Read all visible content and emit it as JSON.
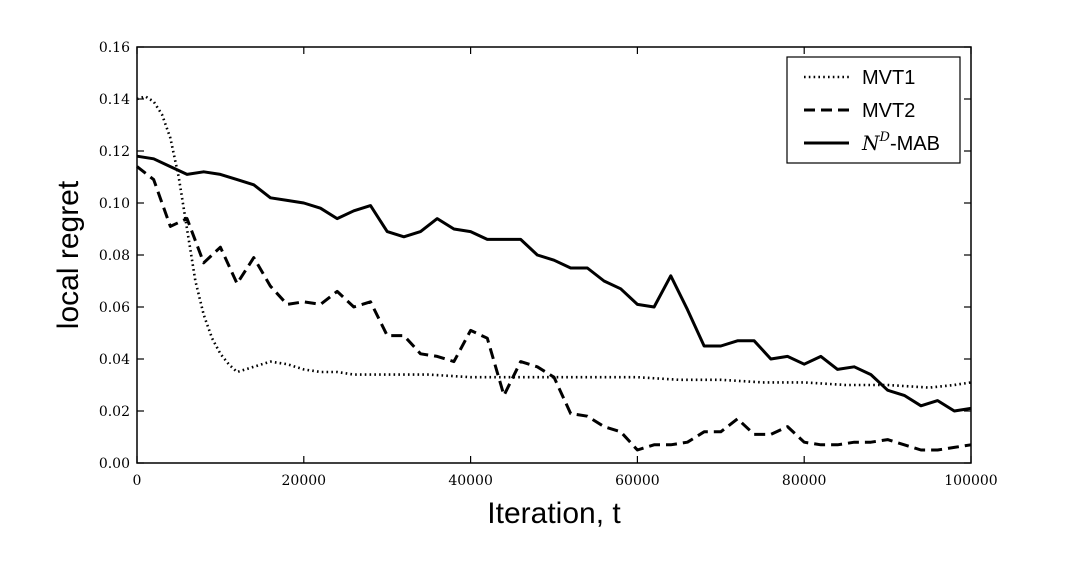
{
  "chart_data": {
    "type": "line",
    "title": "",
    "xlabel": "Iteration, t",
    "ylabel": "local regret",
    "xlim": [
      0,
      100000
    ],
    "ylim": [
      0,
      0.16
    ],
    "xticks": [
      0,
      20000,
      40000,
      60000,
      80000,
      100000
    ],
    "xtick_labels": [
      "0",
      "20000",
      "40000",
      "60000",
      "80000",
      "100000"
    ],
    "yticks": [
      0,
      0.02,
      0.04,
      0.06,
      0.08,
      0.1,
      0.12,
      0.14,
      0.16
    ],
    "ytick_labels": [
      "0.00",
      "0.02",
      "0.04",
      "0.06",
      "0.08",
      "0.10",
      "0.12",
      "0.14",
      "0.16"
    ],
    "grid": false,
    "legend_position": "top-right",
    "legend_entries": [
      {
        "series": "MVT1",
        "label_pre": "",
        "label_math": "",
        "label_sup": "",
        "label_post": "MVT1"
      },
      {
        "series": "MVT2",
        "label_pre": "",
        "label_math": "",
        "label_sup": "",
        "label_post": "MVT2"
      },
      {
        "series": "ND-MAB",
        "label_pre": "",
        "label_math": "N",
        "label_sup": "D",
        "label_post": "-MAB"
      }
    ],
    "series": [
      {
        "name": "MVT1",
        "style": "dotted",
        "x": [
          0,
          1000,
          2000,
          3000,
          4000,
          5000,
          6000,
          7000,
          8000,
          9000,
          10000,
          11000,
          12000,
          14000,
          16000,
          18000,
          20000,
          22000,
          24000,
          26000,
          28000,
          30000,
          35000,
          40000,
          45000,
          50000,
          55000,
          60000,
          65000,
          70000,
          75000,
          80000,
          85000,
          90000,
          95000,
          98000,
          100000
        ],
        "y": [
          0.14,
          0.141,
          0.139,
          0.134,
          0.125,
          0.11,
          0.09,
          0.07,
          0.057,
          0.048,
          0.042,
          0.038,
          0.035,
          0.037,
          0.039,
          0.038,
          0.036,
          0.035,
          0.035,
          0.034,
          0.034,
          0.034,
          0.034,
          0.033,
          0.033,
          0.033,
          0.033,
          0.033,
          0.032,
          0.032,
          0.031,
          0.031,
          0.03,
          0.03,
          0.029,
          0.03,
          0.031
        ]
      },
      {
        "name": "MVT2",
        "style": "dashed",
        "x": [
          0,
          2000,
          4000,
          6000,
          8000,
          10000,
          12000,
          14000,
          16000,
          18000,
          20000,
          22000,
          24000,
          26000,
          28000,
          30000,
          32000,
          34000,
          36000,
          38000,
          40000,
          42000,
          44000,
          46000,
          48000,
          50000,
          52000,
          54000,
          56000,
          58000,
          60000,
          62000,
          64000,
          66000,
          68000,
          70000,
          72000,
          74000,
          76000,
          78000,
          80000,
          82000,
          84000,
          86000,
          88000,
          90000,
          92000,
          94000,
          96000,
          98000,
          100000
        ],
        "y": [
          0.114,
          0.109,
          0.091,
          0.094,
          0.077,
          0.083,
          0.069,
          0.079,
          0.068,
          0.061,
          0.062,
          0.061,
          0.066,
          0.06,
          0.062,
          0.049,
          0.049,
          0.042,
          0.041,
          0.039,
          0.051,
          0.048,
          0.026,
          0.039,
          0.037,
          0.033,
          0.019,
          0.018,
          0.014,
          0.012,
          0.005,
          0.007,
          0.007,
          0.008,
          0.012,
          0.012,
          0.017,
          0.011,
          0.011,
          0.014,
          0.008,
          0.007,
          0.007,
          0.008,
          0.008,
          0.009,
          0.007,
          0.005,
          0.005,
          0.006,
          0.007
        ]
      },
      {
        "name": "ND-MAB",
        "style": "solid",
        "x": [
          0,
          2000,
          4000,
          6000,
          8000,
          10000,
          12000,
          14000,
          16000,
          18000,
          20000,
          22000,
          24000,
          26000,
          28000,
          30000,
          32000,
          34000,
          36000,
          38000,
          40000,
          42000,
          44000,
          46000,
          48000,
          50000,
          52000,
          54000,
          56000,
          58000,
          60000,
          62000,
          64000,
          66000,
          68000,
          70000,
          72000,
          74000,
          76000,
          78000,
          80000,
          82000,
          84000,
          86000,
          88000,
          90000,
          92000,
          94000,
          96000,
          98000,
          100000
        ],
        "y": [
          0.118,
          0.117,
          0.114,
          0.111,
          0.112,
          0.111,
          0.109,
          0.107,
          0.102,
          0.101,
          0.1,
          0.098,
          0.094,
          0.097,
          0.099,
          0.089,
          0.087,
          0.089,
          0.094,
          0.09,
          0.089,
          0.086,
          0.086,
          0.086,
          0.08,
          0.078,
          0.075,
          0.075,
          0.07,
          0.067,
          0.061,
          0.06,
          0.072,
          0.059,
          0.045,
          0.045,
          0.047,
          0.047,
          0.04,
          0.041,
          0.038,
          0.041,
          0.036,
          0.037,
          0.034,
          0.028,
          0.026,
          0.022,
          0.024,
          0.02,
          0.021
        ]
      }
    ]
  }
}
